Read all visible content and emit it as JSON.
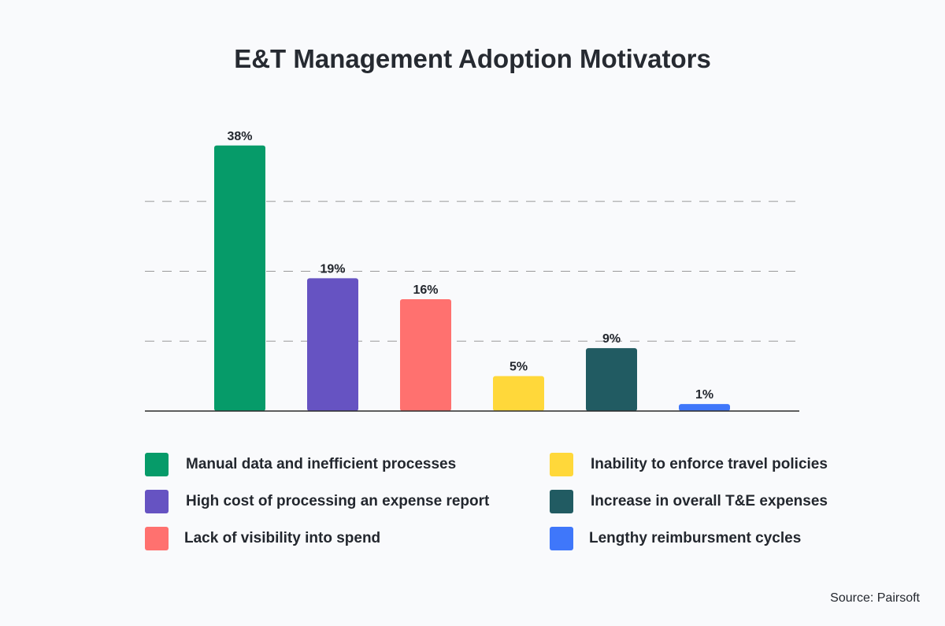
{
  "chart_data": {
    "type": "bar",
    "title": "E&T Management Adoption Motivators",
    "categories": [
      "Manual data and inefficient processes",
      "High cost of processing an expense report",
      "Lack of visibility into spend",
      "Inability to enforce travel policies",
      "Increase in overall T&E expenses",
      "Lengthy reimbursment cycles"
    ],
    "values": [
      38,
      19,
      16,
      5,
      9,
      1
    ],
    "value_labels": [
      "38%",
      "19%",
      "16%",
      "5%",
      "9%",
      "1%"
    ],
    "colors": [
      "#069b69",
      "#6653c2",
      "#ff716f",
      "#ffd83a",
      "#215b62",
      "#3f77fa"
    ],
    "ylim": [
      0,
      40
    ],
    "gridlines": [
      10,
      20,
      30
    ],
    "grid": true,
    "legend_position": "bottom"
  },
  "source": "Source: Pairsoft"
}
